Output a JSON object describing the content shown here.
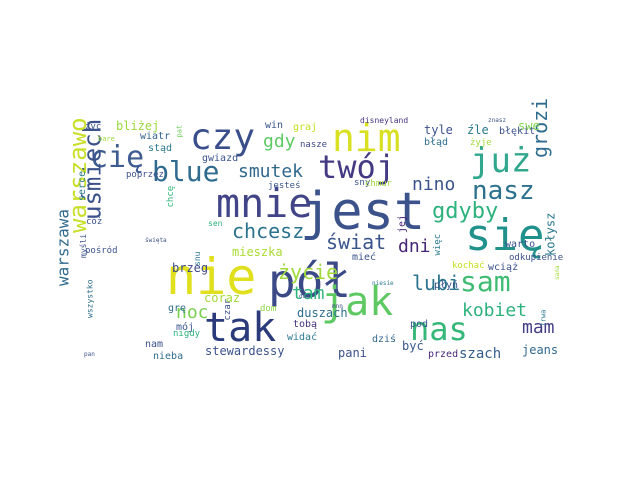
{
  "word_cloud": {
    "words": [
      {
        "text": "jest",
        "color": "#3b528b"
      },
      {
        "text": "nie",
        "color": "#e0e01e"
      },
      {
        "text": "mnie",
        "color": "#414487"
      },
      {
        "text": "się",
        "color": "#21918c"
      },
      {
        "text": "pół",
        "color": "#3b4a87"
      },
      {
        "text": "jak",
        "color": "#5ec962"
      },
      {
        "text": "nas",
        "color": "#35b779"
      },
      {
        "text": "tak",
        "color": "#2a3a7a"
      },
      {
        "text": "czy",
        "color": "#3a4e8c"
      },
      {
        "text": "nim",
        "color": "#d9e021"
      },
      {
        "text": "już",
        "color": "#31a88e"
      },
      {
        "text": "twój",
        "color": "#443a83"
      },
      {
        "text": "cię",
        "color": "#3e5c92"
      },
      {
        "text": "blue",
        "color": "#2f6b8e"
      },
      {
        "text": "uśmiech",
        "color": "#3b528b"
      },
      {
        "text": "warszawo",
        "color": "#c8df28"
      },
      {
        "text": "sam",
        "color": "#3fbc73"
      },
      {
        "text": "nasz",
        "color": "#2c718e"
      },
      {
        "text": "gdyby",
        "color": "#2db27d"
      },
      {
        "text": "grozi",
        "color": "#2e6d8e"
      },
      {
        "text": "nino",
        "color": "#3b528b"
      },
      {
        "text": "smutek",
        "color": "#31688e"
      },
      {
        "text": "gdy",
        "color": "#5ec962"
      },
      {
        "text": "chcesz",
        "color": "#2c728e"
      },
      {
        "text": "świat",
        "color": "#3a548c"
      },
      {
        "text": "dni",
        "color": "#482677"
      },
      {
        "text": "życie",
        "color": "#9fda3a"
      },
      {
        "text": "tam",
        "color": "#2fb47c"
      },
      {
        "text": "lubi",
        "color": "#2b758e"
      },
      {
        "text": "kobiet",
        "color": "#2db27d"
      },
      {
        "text": "mam",
        "color": "#433e85"
      },
      {
        "text": "noc",
        "color": "#7ad151"
      },
      {
        "text": "warszawa",
        "color": "#30698e"
      },
      {
        "text": "brzeg",
        "color": "#3f4889"
      },
      {
        "text": "mieszka",
        "color": "#aadc32"
      },
      {
        "text": "stewardessy",
        "color": "#3b528b"
      },
      {
        "text": "pani",
        "color": "#3c508b"
      },
      {
        "text": "szach",
        "color": "#35608d"
      },
      {
        "text": "jeans",
        "color": "#31688e"
      },
      {
        "text": "kołysz",
        "color": "#2a788e"
      },
      {
        "text": "duszach",
        "color": "#2e6e8e"
      },
      {
        "text": "coraz",
        "color": "#a5db36"
      },
      {
        "text": "mieć",
        "color": "#3a538b"
      },
      {
        "text": "być",
        "color": "#38588c"
      },
      {
        "text": "przed",
        "color": "#482878"
      },
      {
        "text": "dziś",
        "color": "#31688e"
      },
      {
        "text": "bliżej",
        "color": "#9bd93c"
      },
      {
        "text": "swe",
        "color": "#7fd34e"
      },
      {
        "text": "tyle",
        "color": "#3b528b"
      },
      {
        "text": "źle",
        "color": "#2a788e"
      },
      {
        "text": "błękit",
        "color": "#3b528b"
      },
      {
        "text": "win",
        "color": "#3a538b"
      },
      {
        "text": "graj",
        "color": "#c5e021"
      },
      {
        "text": "disneyland",
        "color": "#46327e"
      },
      {
        "text": "wiatr",
        "color": "#33638d"
      },
      {
        "text": "stąd",
        "color": "#2a788e"
      },
      {
        "text": "gwiazd",
        "color": "#3a538b"
      },
      {
        "text": "nasze",
        "color": "#3f4889"
      },
      {
        "text": "błąd",
        "color": "#2e6e8e"
      },
      {
        "text": "warto",
        "color": "#3a548c"
      },
      {
        "text": "odkupienie",
        "color": "#3b528b"
      },
      {
        "text": "jej",
        "color": "#482475"
      },
      {
        "text": "więc",
        "color": "#2a788e"
      },
      {
        "text": "wciąż",
        "color": "#3b528b"
      },
      {
        "text": "płyń",
        "color": "#3a548c"
      },
      {
        "text": "kochać",
        "color": "#c5e021"
      },
      {
        "text": "pod",
        "color": "#3a538b"
      },
      {
        "text": "tobą",
        "color": "#46327e"
      },
      {
        "text": "widać",
        "color": "#2a788e"
      },
      {
        "text": "nam",
        "color": "#3b528b"
      },
      {
        "text": "nieba",
        "color": "#2e6e8e"
      },
      {
        "text": "mój",
        "color": "#3a538b"
      },
      {
        "text": "grę",
        "color": "#2f6b8e"
      },
      {
        "text": "nigdy",
        "color": "#2db27d"
      },
      {
        "text": "dom",
        "color": "#8fd744"
      },
      {
        "text": "sny",
        "color": "#3b528b"
      },
      {
        "text": "chmur",
        "color": "#9fda3a"
      },
      {
        "text": "jesteś",
        "color": "#3a538b"
      },
      {
        "text": "sen",
        "color": "#2db27d"
      },
      {
        "text": "chcę",
        "color": "#35b779"
      },
      {
        "text": "czar",
        "color": "#3b528b"
      },
      {
        "text": "serce",
        "color": "#2a788e"
      },
      {
        "text": "cóż",
        "color": "#3a538b"
      },
      {
        "text": "poprzez",
        "color": "#3b528b"
      },
      {
        "text": "życ",
        "color": "#3b528b"
      },
      {
        "text": "pat",
        "color": "#6ece58"
      },
      {
        "text": "bare",
        "color": "#9fda3a"
      },
      {
        "text": "wszystko",
        "color": "#2e6e8e"
      },
      {
        "text": "pośród",
        "color": "#3b528b"
      },
      {
        "text": "myśli",
        "color": "#3a538b"
      },
      {
        "text": "snu",
        "color": "#2a788e"
      },
      {
        "text": "święta",
        "color": "#3b528b"
      },
      {
        "text": "dan",
        "color": "#3b528b"
      },
      {
        "text": "niesie",
        "color": "#2a788e"
      },
      {
        "text": "żyje",
        "color": "#9fda3a"
      },
      {
        "text": "znasz",
        "color": "#3b528b"
      },
      {
        "text": "pan",
        "color": "#3b528b"
      },
      {
        "text": "trwa",
        "color": "#2a788e"
      },
      {
        "text": "sana",
        "color": "#9fda3a"
      },
      {
        "text": "mnn",
        "color": "#3b528b"
      }
    ]
  }
}
